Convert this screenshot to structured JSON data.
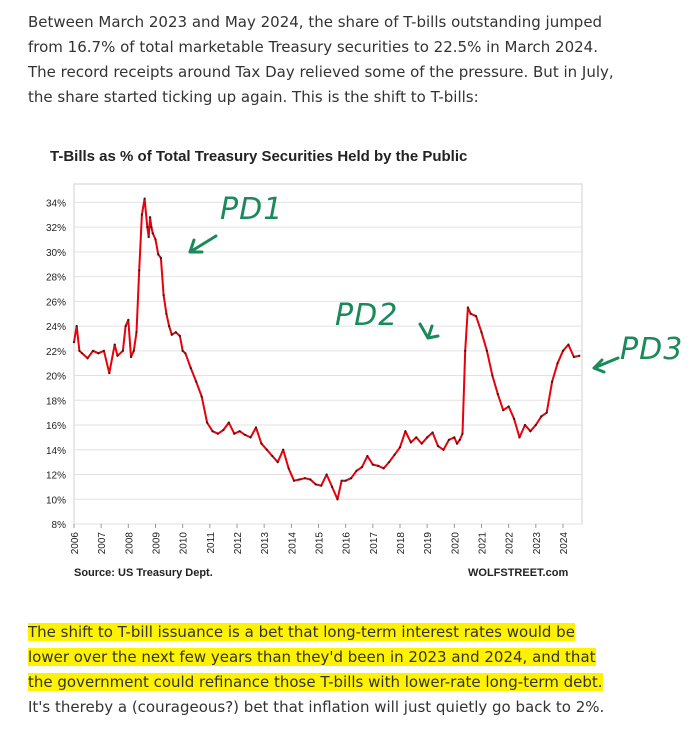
{
  "intro": {
    "lines": [
      "Between March 2023 and May 2024, the share of T-bills outstanding jumped",
      "from 16.7% of total marketable Treasury securities to 22.5% in March 2024.",
      "The record receipts around Tax Day relieved some of the pressure. But in July,",
      "the share started ticking up again. This is the shift to T-bills:"
    ]
  },
  "chart_data": {
    "type": "line",
    "title": "T-Bills as % of Total Treasury Securities Held by the Public",
    "source": "Source: US Treasury Dept.",
    "brand": "WOLFSTREET.com",
    "xlabel": "",
    "ylabel": "",
    "ylim": [
      8,
      35
    ],
    "y_ticks": [
      "8%",
      "10%",
      "12%",
      "14%",
      "16%",
      "18%",
      "20%",
      "22%",
      "24%",
      "26%",
      "28%",
      "30%",
      "32%",
      "34%"
    ],
    "x_ticks": [
      "2006",
      "2007",
      "2008",
      "2009",
      "2010",
      "2011",
      "2012",
      "2013",
      "2014",
      "2015",
      "2016",
      "2017",
      "2018",
      "2019",
      "2020",
      "2021",
      "2022",
      "2023",
      "2024"
    ],
    "grid": true,
    "series": [
      {
        "color": "#e8000b",
        "x": [
          2006.0,
          2006.1,
          2006.2,
          2006.3,
          2006.5,
          2006.7,
          2006.9,
          2007.1,
          2007.3,
          2007.5,
          2007.6,
          2007.8,
          2007.9,
          2008.0,
          2008.1,
          2008.2,
          2008.3,
          2008.4,
          2008.5,
          2008.6,
          2008.7,
          2008.75,
          2008.8,
          2008.85,
          2008.9,
          2009.0,
          2009.1,
          2009.2,
          2009.3,
          2009.4,
          2009.5,
          2009.6,
          2009.75,
          2009.9,
          2010.0,
          2010.1,
          2010.3,
          2010.5,
          2010.7,
          2010.9,
          2011.1,
          2011.3,
          2011.5,
          2011.7,
          2011.9,
          2012.1,
          2012.3,
          2012.5,
          2012.7,
          2012.9,
          2013.1,
          2013.3,
          2013.5,
          2013.7,
          2013.9,
          2014.1,
          2014.3,
          2014.5,
          2014.7,
          2014.9,
          2015.1,
          2015.3,
          2015.5,
          2015.7,
          2015.85,
          2016.0,
          2016.2,
          2016.4,
          2016.6,
          2016.8,
          2017.0,
          2017.2,
          2017.4,
          2017.6,
          2017.8,
          2018.0,
          2018.2,
          2018.4,
          2018.6,
          2018.8,
          2019.0,
          2019.2,
          2019.4,
          2019.6,
          2019.8,
          2020.0,
          2020.1,
          2020.2,
          2020.3,
          2020.4,
          2020.5,
          2020.6,
          2020.8,
          2021.0,
          2021.2,
          2021.4,
          2021.6,
          2021.8,
          2022.0,
          2022.2,
          2022.4,
          2022.6,
          2022.8,
          2023.0,
          2023.2,
          2023.4,
          2023.6,
          2023.8,
          2024.0,
          2024.2,
          2024.4,
          2024.6
        ],
        "values": [
          22.7,
          24.0,
          22.0,
          21.8,
          21.4,
          22.0,
          21.8,
          22.0,
          20.2,
          22.5,
          21.6,
          22.0,
          24.0,
          24.5,
          21.5,
          22.0,
          23.5,
          28.5,
          33.0,
          34.3,
          32.0,
          31.2,
          32.8,
          32.0,
          31.5,
          31.0,
          29.8,
          29.5,
          26.5,
          25.0,
          24.0,
          23.3,
          23.5,
          23.2,
          22.0,
          21.8,
          20.6,
          19.5,
          18.3,
          16.2,
          15.5,
          15.3,
          15.6,
          16.2,
          15.3,
          15.5,
          15.2,
          15.0,
          15.8,
          14.5,
          14.0,
          13.5,
          13.0,
          14.0,
          12.5,
          11.5,
          11.6,
          11.7,
          11.6,
          11.2,
          11.1,
          12.0,
          11.0,
          10.0,
          11.5,
          11.5,
          11.7,
          12.3,
          12.6,
          13.5,
          12.8,
          12.7,
          12.5,
          13.0,
          13.6,
          14.2,
          15.5,
          14.6,
          15.0,
          14.5,
          15.0,
          15.4,
          14.3,
          14.0,
          14.8,
          15.0,
          14.5,
          14.8,
          15.3,
          22.0,
          25.5,
          25.0,
          24.8,
          23.5,
          22.0,
          20.0,
          18.5,
          17.2,
          17.5,
          16.5,
          15.0,
          16.0,
          15.5,
          16.0,
          16.7,
          17.0,
          19.5,
          21.0,
          22.0,
          22.5,
          21.5,
          21.6
        ]
      }
    ]
  },
  "annotations": {
    "pd1": "PD1",
    "pd2": "PD2",
    "pd3": "PD3"
  },
  "outro": {
    "segments": [
      {
        "text": "The shift to T-bill issuance is a bet that long-term interest rates would be",
        "highlight": true
      },
      {
        "text": "lower over the next few years than they'd been in 2023 and 2024, and that",
        "highlight": true
      },
      {
        "text": "the government could refinance those T-bills with lower-rate long-term debt.",
        "highlight": true
      },
      {
        "text": "It's thereby a (courageous?) bet that inflation will just quietly go back to 2%.",
        "highlight": false
      }
    ]
  }
}
